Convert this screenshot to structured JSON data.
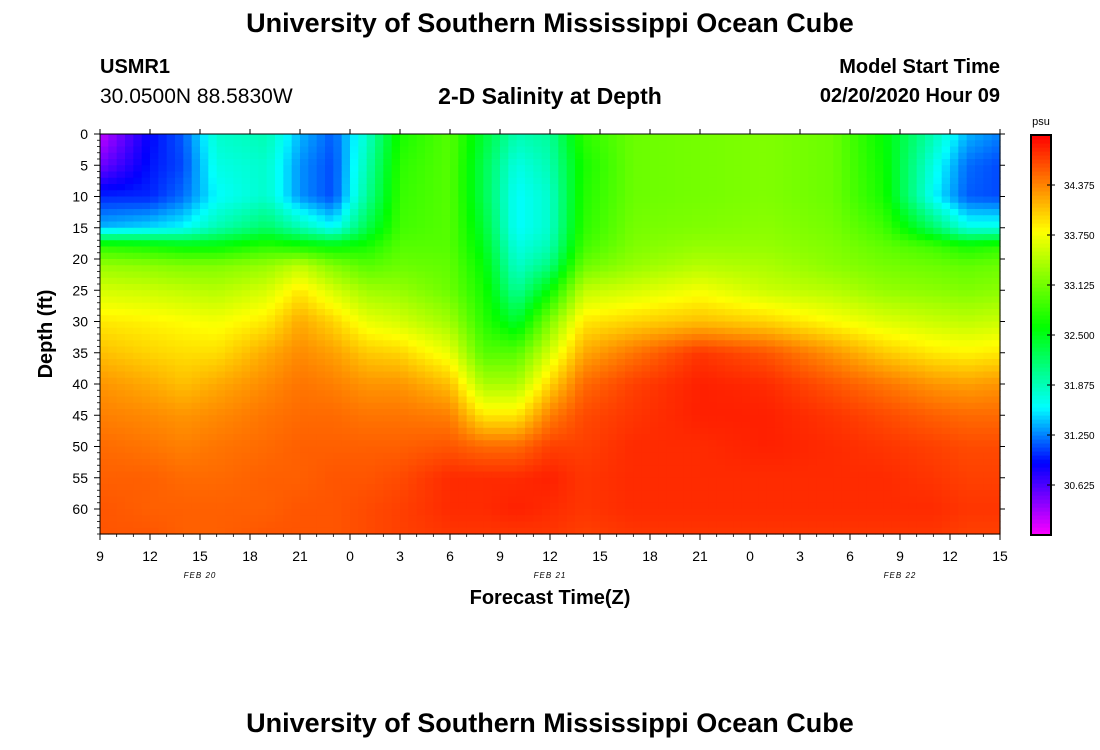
{
  "header": {
    "top_title": "University of Southern Mississippi Ocean Cube",
    "bottom_title": "University of Southern Mississippi Ocean Cube",
    "station_name": "USMR1",
    "station_coords": "30.0500N 88.5830W",
    "plot_title": "2-D Salinity at Depth",
    "model_start_label": "Model Start Time",
    "model_start_value": "02/20/2020 Hour 09"
  },
  "chart_data": {
    "type": "heatmap",
    "title": "2-D Salinity at Depth",
    "xlabel": "Forecast Time(Z)",
    "ylabel": "Depth (ft)",
    "x_hours": [
      0,
      3,
      6,
      9,
      12,
      15,
      18,
      21,
      24,
      27,
      30,
      33,
      36,
      39,
      42,
      45,
      48,
      51,
      54
    ],
    "x_tick_labels": [
      "9",
      "12",
      "15",
      "18",
      "21",
      "0",
      "3",
      "6",
      "9",
      "12",
      "15",
      "18",
      "21",
      "0",
      "3",
      "6",
      "9",
      "12",
      "15"
    ],
    "date_labels": [
      {
        "label": "FEB 20",
        "hour": 6
      },
      {
        "label": "FEB 21",
        "hour": 27
      },
      {
        "label": "FEB 22",
        "hour": 48
      }
    ],
    "y_ticks": [
      0,
      5,
      10,
      15,
      20,
      25,
      30,
      35,
      40,
      45,
      50,
      55,
      60
    ],
    "ylim": [
      0,
      64
    ],
    "xlim": [
      0,
      54
    ],
    "colorbar": {
      "unit": "psu",
      "min": 30.0,
      "max": 35.0,
      "tick_values": [
        30.625,
        31.25,
        31.875,
        32.5,
        33.125,
        33.75,
        34.375
      ],
      "tick_labels": [
        "30.625",
        "31.250",
        "31.875",
        "32.500",
        "33.125",
        "33.750",
        "34.375"
      ]
    },
    "depths": [
      0,
      5,
      10,
      15,
      18,
      21,
      25,
      30,
      35,
      40,
      45,
      50,
      55,
      60,
      64
    ],
    "profiles": [
      {
        "hour": 0,
        "salinity": [
          30.2,
          30.5,
          31.0,
          31.4,
          32.8,
          33.3,
          33.6,
          33.9,
          34.1,
          34.3,
          34.4,
          34.5,
          34.55,
          34.6,
          34.6
        ]
      },
      {
        "hour": 3,
        "salinity": [
          30.9,
          30.95,
          31.0,
          31.5,
          32.7,
          33.25,
          33.55,
          33.85,
          34.0,
          34.2,
          34.35,
          34.45,
          34.55,
          34.55,
          34.6
        ]
      },
      {
        "hour": 5,
        "salinity": [
          31.15,
          31.1,
          31.2,
          31.6,
          32.6,
          33.2,
          33.5,
          33.8,
          33.95,
          34.1,
          34.3,
          34.4,
          34.5,
          34.55,
          34.55
        ]
      },
      {
        "hour": 7,
        "salinity": [
          31.8,
          31.7,
          31.6,
          31.9,
          32.6,
          33.2,
          33.45,
          33.75,
          33.95,
          34.2,
          34.35,
          34.45,
          34.5,
          34.55,
          34.55
        ]
      },
      {
        "hour": 10,
        "salinity": [
          31.9,
          31.8,
          31.8,
          32.2,
          32.8,
          33.3,
          33.6,
          33.9,
          34.2,
          34.35,
          34.45,
          34.5,
          34.55,
          34.55,
          34.6
        ]
      },
      {
        "hour": 12,
        "salinity": [
          31.4,
          31.3,
          31.3,
          31.9,
          32.7,
          33.5,
          33.9,
          34.2,
          34.35,
          34.45,
          34.5,
          34.55,
          34.55,
          34.6,
          34.6
        ]
      },
      {
        "hour": 14,
        "salinity": [
          31.15,
          31.1,
          31.1,
          31.6,
          32.6,
          33.2,
          33.6,
          34.0,
          34.25,
          34.4,
          34.5,
          34.55,
          34.6,
          34.6,
          34.6
        ]
      },
      {
        "hour": 16,
        "salinity": [
          31.8,
          31.9,
          32.0,
          32.3,
          32.7,
          33.0,
          33.35,
          33.7,
          34.05,
          34.3,
          34.45,
          34.55,
          34.6,
          34.65,
          34.65
        ]
      },
      {
        "hour": 18,
        "salinity": [
          32.7,
          32.8,
          32.85,
          32.9,
          33.0,
          33.1,
          33.3,
          33.6,
          34.0,
          34.3,
          34.45,
          34.55,
          34.65,
          34.7,
          34.7
        ]
      },
      {
        "hour": 21,
        "salinity": [
          33.0,
          33.0,
          33.0,
          33.0,
          33.0,
          33.05,
          33.1,
          33.35,
          33.7,
          34.1,
          34.4,
          34.6,
          34.8,
          34.8,
          34.75
        ]
      },
      {
        "hour": 23,
        "salinity": [
          32.4,
          32.3,
          32.3,
          32.4,
          32.5,
          32.6,
          32.7,
          32.8,
          33.0,
          33.4,
          33.9,
          34.5,
          34.8,
          34.8,
          34.75
        ]
      },
      {
        "hour": 25,
        "salinity": [
          31.9,
          31.7,
          31.6,
          31.6,
          31.7,
          31.8,
          32.0,
          32.4,
          33.0,
          33.4,
          33.9,
          34.5,
          34.8,
          34.85,
          34.75
        ]
      },
      {
        "hour": 27,
        "salinity": [
          32.0,
          31.9,
          31.8,
          31.8,
          31.9,
          32.1,
          32.6,
          33.2,
          33.6,
          34.0,
          34.4,
          34.7,
          34.85,
          34.8,
          34.75
        ]
      },
      {
        "hour": 29,
        "salinity": [
          32.8,
          32.7,
          32.75,
          32.8,
          32.9,
          33.1,
          33.5,
          33.9,
          34.2,
          34.5,
          34.65,
          34.7,
          34.75,
          34.75,
          34.7
        ]
      },
      {
        "hour": 32,
        "salinity": [
          33.1,
          33.1,
          33.1,
          33.15,
          33.2,
          33.3,
          33.6,
          34.0,
          34.45,
          34.7,
          34.75,
          34.8,
          34.8,
          34.8,
          34.75
        ]
      },
      {
        "hour": 36,
        "salinity": [
          33.15,
          33.15,
          33.15,
          33.2,
          33.3,
          33.45,
          33.75,
          34.1,
          34.75,
          34.85,
          34.85,
          34.8,
          34.8,
          34.8,
          34.75
        ]
      },
      {
        "hour": 40,
        "salinity": [
          33.2,
          33.2,
          33.2,
          33.25,
          33.3,
          33.4,
          33.55,
          34.0,
          34.6,
          34.8,
          34.85,
          34.85,
          34.8,
          34.8,
          34.75
        ]
      },
      {
        "hour": 44,
        "salinity": [
          33.1,
          33.1,
          33.1,
          33.15,
          33.2,
          33.25,
          33.45,
          33.8,
          34.3,
          34.6,
          34.75,
          34.8,
          34.8,
          34.8,
          34.75
        ]
      },
      {
        "hour": 47,
        "salinity": [
          32.6,
          32.65,
          32.7,
          32.9,
          33.05,
          33.15,
          33.3,
          33.65,
          34.05,
          34.45,
          34.65,
          34.75,
          34.8,
          34.8,
          34.75
        ]
      },
      {
        "hour": 50,
        "salinity": [
          31.9,
          31.7,
          31.6,
          32.2,
          32.9,
          33.1,
          33.25,
          33.55,
          33.9,
          34.3,
          34.55,
          34.7,
          34.75,
          34.8,
          34.75
        ]
      },
      {
        "hour": 52,
        "salinity": [
          31.4,
          31.2,
          31.15,
          31.7,
          32.7,
          33.05,
          33.2,
          33.5,
          33.85,
          34.25,
          34.5,
          34.65,
          34.7,
          34.75,
          34.7
        ]
      },
      {
        "hour": 54,
        "salinity": [
          31.25,
          31.1,
          31.1,
          31.7,
          32.8,
          33.1,
          33.25,
          33.55,
          33.9,
          34.3,
          34.5,
          34.65,
          34.7,
          34.75,
          34.7
        ]
      }
    ]
  }
}
